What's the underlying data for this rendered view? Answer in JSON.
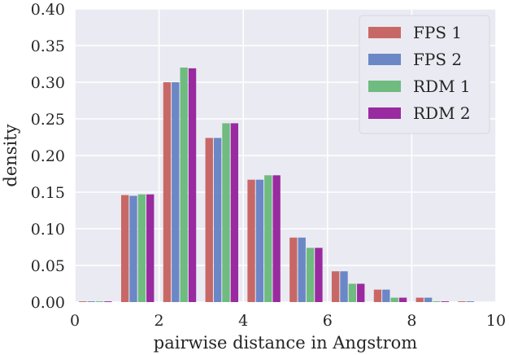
{
  "chart_data": {
    "type": "bar",
    "xlabel": "pairwise distance in Angstrom",
    "ylabel": "density",
    "xlim": [
      0,
      10
    ],
    "ylim": [
      0,
      0.4
    ],
    "grid": true,
    "legend_position": "top-right",
    "xticks": [
      "0",
      "2",
      "4",
      "6",
      "8",
      "10"
    ],
    "yticks": [
      "0.00",
      "0.05",
      "0.10",
      "0.15",
      "0.20",
      "0.25",
      "0.30",
      "0.35",
      "0.40"
    ],
    "bin_edges": [
      0,
      1,
      2,
      3,
      4,
      5,
      6,
      7,
      8,
      9,
      10
    ],
    "series": [
      {
        "name": "FPS 1",
        "color": "#c86866",
        "values": [
          0.001,
          0.146,
          0.3,
          0.224,
          0.167,
          0.088,
          0.042,
          0.017,
          0.006,
          0.001
        ]
      },
      {
        "name": "FPS 2",
        "color": "#6b87c5",
        "values": [
          0.001,
          0.145,
          0.3,
          0.224,
          0.167,
          0.088,
          0.042,
          0.017,
          0.006,
          0.001
        ]
      },
      {
        "name": "RDM 1",
        "color": "#6fbb80",
        "values": [
          0.001,
          0.147,
          0.32,
          0.244,
          0.173,
          0.074,
          0.025,
          0.006,
          0.001,
          0.0
        ]
      },
      {
        "name": "RDM 2",
        "color": "#9a2aa0",
        "values": [
          0.001,
          0.147,
          0.319,
          0.244,
          0.173,
          0.074,
          0.025,
          0.006,
          0.001,
          0.0
        ]
      }
    ]
  }
}
